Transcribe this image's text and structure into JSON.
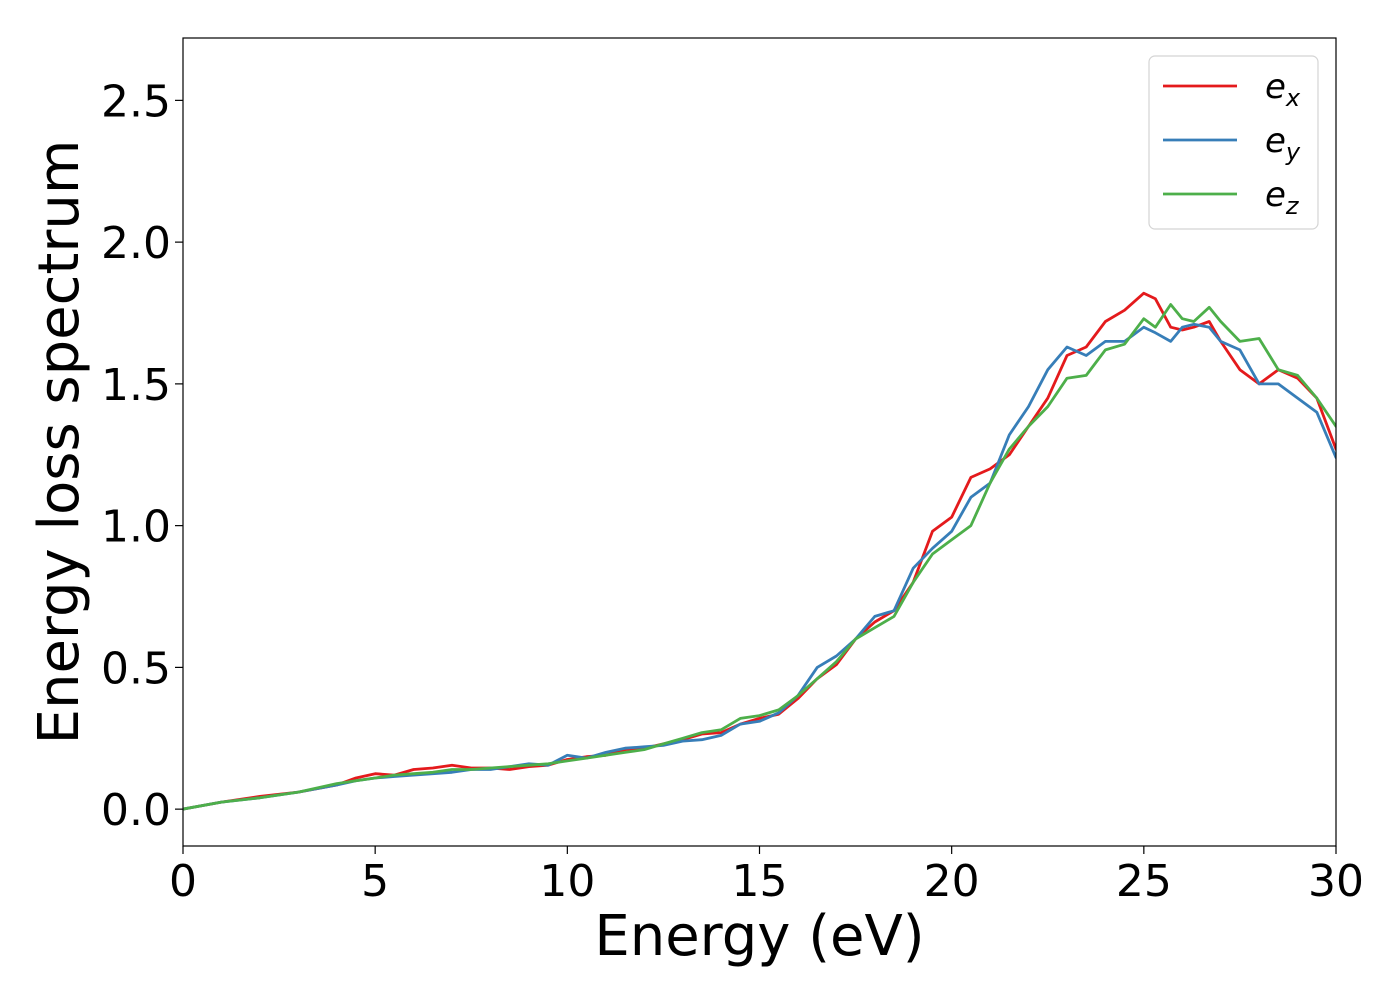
{
  "chart_data": {
    "type": "line",
    "xlabel": "Energy (eV)",
    "ylabel": "Energy loss spectrum",
    "xlim": [
      0,
      30
    ],
    "ylim": [
      -0.13,
      2.72
    ],
    "xticks": [
      0,
      5,
      10,
      15,
      20,
      25,
      30
    ],
    "xtick_labels": [
      "0",
      "5",
      "10",
      "15",
      "20",
      "25",
      "30"
    ],
    "yticks": [
      0.0,
      0.5,
      1.0,
      1.5,
      2.0,
      2.5
    ],
    "ytick_labels": [
      "0.0",
      "0.5",
      "1.0",
      "1.5",
      "2.0",
      "2.5"
    ],
    "grid": false,
    "legend_position": "top-right",
    "series": [
      {
        "name": "e",
        "subscript": "x",
        "color": "#e41a1c",
        "x": [
          0,
          1,
          2,
          3,
          4,
          4.5,
          5,
          5.5,
          6,
          6.5,
          7,
          7.5,
          8,
          8.5,
          9,
          9.5,
          10,
          10.5,
          11,
          11.5,
          12,
          12.5,
          13,
          13.5,
          14,
          14.5,
          15,
          15.5,
          16,
          16.5,
          17,
          17.5,
          18,
          18.5,
          19,
          19.5,
          20,
          20.5,
          21,
          21.5,
          22,
          22.5,
          23,
          23.5,
          24,
          24.5,
          25,
          25.3,
          25.7,
          26,
          26.3,
          26.7,
          27,
          27.5,
          28,
          28.5,
          29,
          29.5,
          30
        ],
        "y": [
          0,
          0.025,
          0.045,
          0.06,
          0.085,
          0.11,
          0.125,
          0.12,
          0.14,
          0.145,
          0.155,
          0.145,
          0.145,
          0.14,
          0.15,
          0.155,
          0.175,
          0.185,
          0.19,
          0.21,
          0.215,
          0.23,
          0.245,
          0.265,
          0.27,
          0.3,
          0.32,
          0.335,
          0.39,
          0.46,
          0.51,
          0.6,
          0.66,
          0.7,
          0.8,
          0.98,
          1.03,
          1.17,
          1.2,
          1.25,
          1.35,
          1.45,
          1.6,
          1.63,
          1.72,
          1.76,
          1.82,
          1.8,
          1.7,
          1.69,
          1.7,
          1.72,
          1.65,
          1.55,
          1.5,
          1.55,
          1.52,
          1.45,
          1.27
        ]
      },
      {
        "name": "e",
        "subscript": "y",
        "color": "#377eb8",
        "x": [
          0,
          1,
          2,
          3,
          4,
          4.5,
          5,
          5.5,
          6,
          6.5,
          7,
          7.5,
          8,
          8.5,
          9,
          9.5,
          10,
          10.5,
          11,
          11.5,
          12,
          12.5,
          13,
          13.5,
          14,
          14.5,
          15,
          15.5,
          16,
          16.5,
          17,
          17.5,
          18,
          18.5,
          19,
          19.5,
          20,
          20.5,
          21,
          21.5,
          22,
          22.5,
          23,
          23.5,
          24,
          24.5,
          25,
          25.3,
          25.7,
          26,
          26.3,
          26.7,
          27,
          27.5,
          28,
          28.5,
          29,
          29.5,
          30
        ],
        "y": [
          0,
          0.025,
          0.04,
          0.06,
          0.085,
          0.1,
          0.11,
          0.115,
          0.12,
          0.125,
          0.13,
          0.14,
          0.14,
          0.15,
          0.16,
          0.155,
          0.19,
          0.18,
          0.2,
          0.215,
          0.22,
          0.225,
          0.24,
          0.245,
          0.26,
          0.3,
          0.31,
          0.34,
          0.4,
          0.5,
          0.54,
          0.6,
          0.68,
          0.7,
          0.85,
          0.92,
          0.98,
          1.1,
          1.15,
          1.32,
          1.42,
          1.55,
          1.63,
          1.6,
          1.65,
          1.65,
          1.7,
          1.68,
          1.65,
          1.7,
          1.71,
          1.7,
          1.65,
          1.62,
          1.5,
          1.5,
          1.45,
          1.4,
          1.24
        ]
      },
      {
        "name": "e",
        "subscript": "z",
        "color": "#4daf4a",
        "x": [
          0,
          1,
          2,
          3,
          4,
          4.5,
          5,
          5.5,
          6,
          6.5,
          7,
          7.5,
          8,
          8.5,
          9,
          9.5,
          10,
          10.5,
          11,
          11.5,
          12,
          12.5,
          13,
          13.5,
          14,
          14.5,
          15,
          15.5,
          16,
          16.5,
          17,
          17.5,
          18,
          18.5,
          19,
          19.5,
          20,
          20.5,
          21,
          21.5,
          22,
          22.5,
          23,
          23.5,
          24,
          24.5,
          25,
          25.3,
          25.7,
          26,
          26.3,
          26.7,
          27,
          27.5,
          28,
          28.5,
          29,
          29.5,
          30
        ],
        "y": [
          0,
          0.025,
          0.04,
          0.06,
          0.09,
          0.1,
          0.11,
          0.12,
          0.125,
          0.13,
          0.14,
          0.14,
          0.145,
          0.15,
          0.155,
          0.16,
          0.17,
          0.18,
          0.19,
          0.2,
          0.21,
          0.23,
          0.25,
          0.27,
          0.28,
          0.32,
          0.33,
          0.35,
          0.4,
          0.46,
          0.52,
          0.6,
          0.64,
          0.68,
          0.8,
          0.9,
          0.95,
          1.0,
          1.15,
          1.27,
          1.35,
          1.42,
          1.52,
          1.53,
          1.62,
          1.64,
          1.73,
          1.7,
          1.78,
          1.73,
          1.72,
          1.77,
          1.72,
          1.65,
          1.66,
          1.55,
          1.53,
          1.45,
          1.35
        ]
      }
    ]
  }
}
